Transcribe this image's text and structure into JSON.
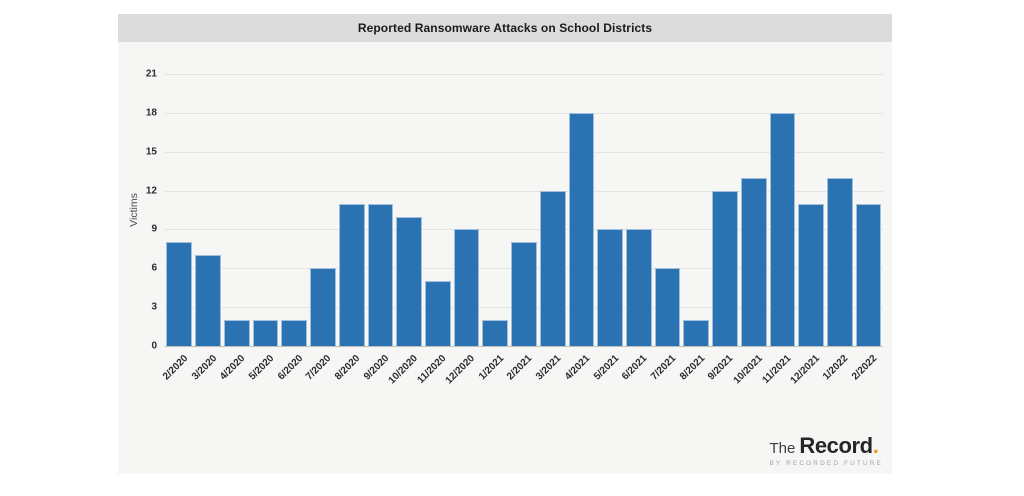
{
  "chart_data": {
    "type": "bar",
    "title": "Reported Ransomware Attacks on School Districts",
    "xlabel": "",
    "ylabel": "Victims",
    "categories": [
      "2/2020",
      "3/2020",
      "4/2020",
      "5/2020",
      "6/2020",
      "7/2020",
      "8/2020",
      "9/2020",
      "10/2020",
      "11/2020",
      "12/2020",
      "1/2021",
      "2/2021",
      "3/2021",
      "4/2021",
      "5/2021",
      "6/2021",
      "7/2021",
      "8/2021",
      "9/2021",
      "10/2021",
      "11/2021",
      "12/2021",
      "1/2022",
      "2/2022"
    ],
    "values": [
      8,
      7,
      2,
      2,
      2,
      6,
      11,
      11,
      10,
      5,
      9,
      2,
      8,
      12,
      18,
      9,
      9,
      6,
      2,
      12,
      13,
      18,
      11,
      13,
      11
    ],
    "ylim": [
      0,
      21
    ],
    "yticks": [
      0,
      3,
      6,
      9,
      12,
      15,
      18,
      21
    ],
    "grid": "horizontal-only",
    "legend": "none",
    "x_tick_rotation_deg": 45,
    "bar_color": "#2b72b3",
    "bar_edge_color": "#a2c0dd",
    "gridline_color": "#e3e3e2",
    "axis_line_color": "#bdbdbd",
    "title_bar_color": "#dcdcdc",
    "card_background": "#f6f6f5"
  },
  "logo": {
    "the": "The",
    "record": "Record",
    "dot": ".",
    "dot_color": "#f7941d",
    "tagline": "BY RECORDED FUTURE"
  }
}
